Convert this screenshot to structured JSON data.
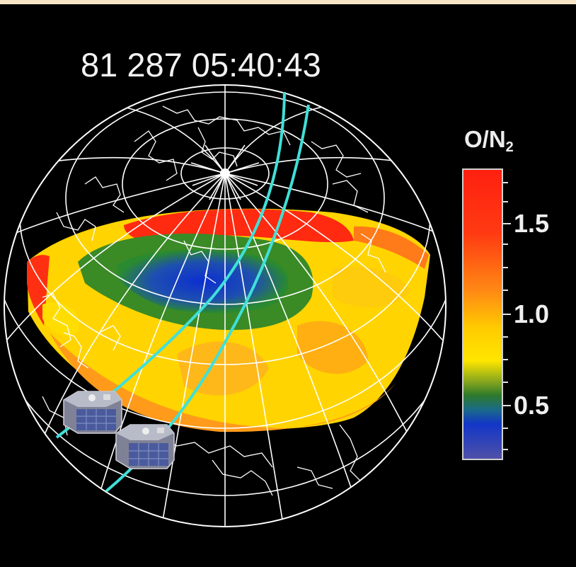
{
  "timestamp": "81 287 05:40:43",
  "legend": {
    "title_main": "O/N",
    "title_sub": "2",
    "ticks": [
      "1.5",
      "1.0",
      "0.5"
    ],
    "colors": [
      "#ff2a10",
      "#ff8a10",
      "#ffe100",
      "#2e8f2a",
      "#1236c8",
      "#4a4aa8"
    ]
  },
  "colors": {
    "background": "#000000",
    "grid": "#ffffff",
    "orbit_track": "#3fe0d8"
  }
}
